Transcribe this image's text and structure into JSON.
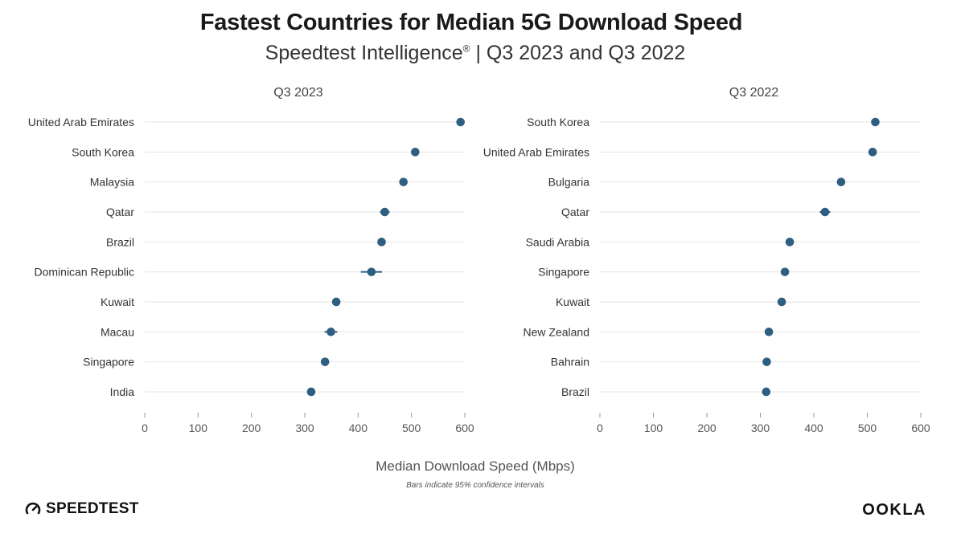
{
  "title": "Fastest Countries for Median 5G Download Speed",
  "subtitle": {
    "brand": "Speedtest Intelligence",
    "reg": "®",
    "rest": " | Q3 2023 and Q3 2022"
  },
  "colors": {
    "point": "#2e5f80",
    "grid": "#e6e6e6",
    "text": "#333333"
  },
  "icons": {
    "left_logo": "speedometer-icon"
  },
  "chart_data": [
    {
      "type": "scatter",
      "panel_title": "Q3 2023",
      "categories": [
        "United Arab Emirates",
        "South Korea",
        "Malaysia",
        "Qatar",
        "Brazil",
        "Dominican Republic",
        "Kuwait",
        "Macau",
        "Singapore",
        "India"
      ],
      "values": [
        592,
        507,
        485,
        450,
        444,
        425,
        359,
        349,
        338,
        312
      ],
      "ci": [
        [
          589,
          595
        ],
        [
          504,
          510
        ],
        [
          482,
          488
        ],
        [
          441,
          459
        ],
        [
          438,
          450
        ],
        [
          405,
          445
        ],
        [
          356,
          362
        ],
        [
          337,
          361
        ],
        [
          334,
          342
        ],
        [
          308,
          316
        ]
      ],
      "xlim": [
        0,
        600
      ],
      "xticks": [
        0,
        100,
        200,
        300,
        400,
        500,
        600
      ]
    },
    {
      "type": "scatter",
      "panel_title": "Q3 2022",
      "categories": [
        "South Korea",
        "United Arab Emirates",
        "Bulgaria",
        "Qatar",
        "Saudi Arabia",
        "Singapore",
        "Kuwait",
        "New Zealand",
        "Bahrain",
        "Brazil"
      ],
      "values": [
        515,
        510,
        451,
        421,
        355,
        346,
        340,
        316,
        312,
        311
      ],
      "ci": [
        [
          512,
          518
        ],
        [
          507,
          513
        ],
        [
          448,
          454
        ],
        [
          411,
          431
        ],
        [
          352,
          358
        ],
        [
          342,
          350
        ],
        [
          337,
          343
        ],
        [
          312,
          320
        ],
        [
          309,
          315
        ],
        [
          308,
          314
        ]
      ],
      "xlim": [
        0,
        600
      ],
      "xticks": [
        0,
        100,
        200,
        300,
        400,
        500,
        600
      ]
    }
  ],
  "xlabel": "Median Download Speed (Mbps)",
  "note": "Bars indicate 95% confidence intervals",
  "branding": {
    "left": "SPEEDTEST",
    "right": "OOKLA"
  }
}
